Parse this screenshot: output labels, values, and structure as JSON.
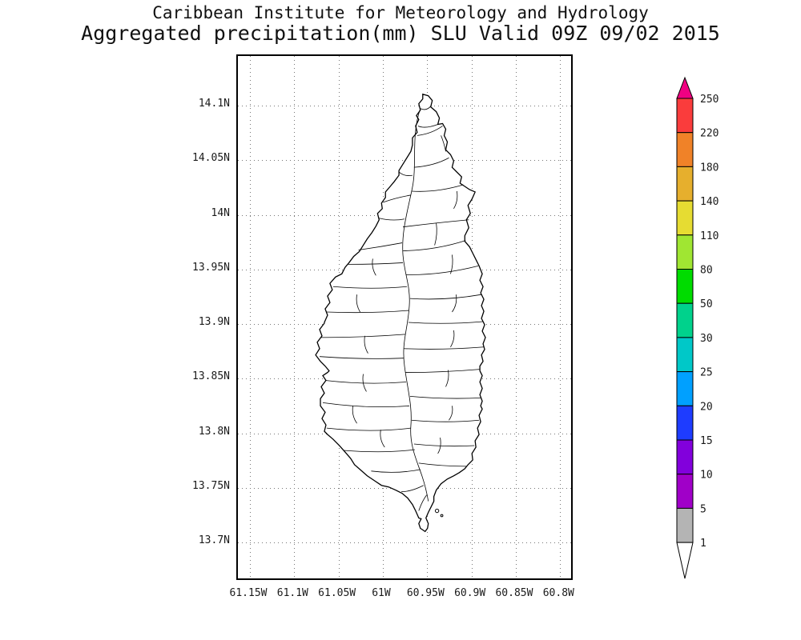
{
  "header": {
    "line1": "Caribbean Institute for Meteorology and Hydrology",
    "line2": "Aggregated precipitation(mm) SLU Valid 09Z 09/02 2015"
  },
  "map": {
    "island": "Saint Lucia (SLU)",
    "lat_ticks": [
      "14.1N",
      "14.05N",
      "14N",
      "13.95N",
      "13.9N",
      "13.85N",
      "13.8N",
      "13.75N",
      "13.7N"
    ],
    "lon_ticks": [
      "61.15W",
      "61.1W",
      "61.05W",
      "61W",
      "60.95W",
      "60.9W",
      "60.85W",
      "60.8W"
    ],
    "shading_note": "All watershed polygons unshaded (white) - aggregated precipitation below lowest level (1 mm) everywhere"
  },
  "colorbar": {
    "unit": "mm",
    "levels_top_to_bottom": [
      "250",
      "220",
      "180",
      "140",
      "110",
      "80",
      "50",
      "30",
      "25",
      "20",
      "15",
      "10",
      "5",
      "1"
    ],
    "segment_colors_top_to_bottom": [
      "#fa3c3c",
      "#f08228",
      "#e6af2d",
      "#e6dc32",
      "#a0e632",
      "#00dc00",
      "#00d28c",
      "#00c8c8",
      "#00a0ff",
      "#1e3cff",
      "#8200dc",
      "#a000c8",
      "#b4b4b4"
    ],
    "over_arrow_color": "#f00082",
    "under_arrow_color": "#ffffff",
    "outline_color": "#000000"
  }
}
